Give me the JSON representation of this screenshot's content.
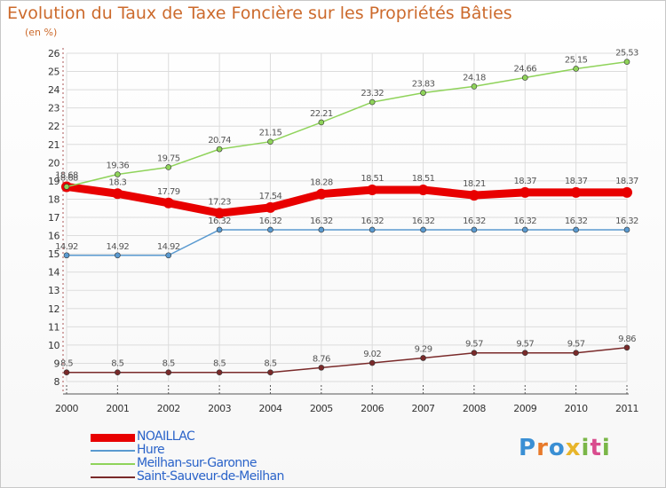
{
  "title": "Evolution du Taux de Taxe Foncière sur les Propriétés Bâties",
  "subtitle": "(en %)",
  "logo": {
    "text": [
      "P",
      "r",
      "o",
      "x",
      "i",
      "t",
      "i"
    ],
    "colors": [
      "#3a8fd4",
      "#e87a2b",
      "#3a8fd4",
      "#e8b52b",
      "#7ab648",
      "#d94c8e",
      "#7ab648"
    ]
  },
  "chart_data": {
    "type": "line",
    "title": "Evolution du Taux de Taxe Foncière sur les Propriétés Bâties",
    "ylabel": "(en %)",
    "xlabel": "",
    "ylim": [
      8,
      26
    ],
    "yticks": [
      "8",
      "9",
      "10",
      "11",
      "12",
      "13",
      "14",
      "15",
      "16",
      "17",
      "18",
      "19",
      "20",
      "21",
      "22",
      "23",
      "24",
      "25",
      "26"
    ],
    "categories": [
      "2000",
      "2001",
      "2002",
      "2003",
      "2004",
      "2005",
      "2006",
      "2007",
      "2008",
      "2009",
      "2010",
      "2011"
    ],
    "series": [
      {
        "name": "NOAILLAC",
        "color": "#e80000",
        "thick": true,
        "values": [
          18.68,
          18.3,
          17.79,
          17.23,
          17.54,
          18.28,
          18.51,
          18.51,
          18.21,
          18.37,
          18.37,
          18.37
        ],
        "labels": [
          "18.68",
          "18.3",
          "17.79",
          "17.23",
          "17.54",
          "18.28",
          "18.51",
          "18.51",
          "18.21",
          "18.37",
          "18.37",
          "18.37"
        ]
      },
      {
        "name": "Hure",
        "color": "#5a9ad0",
        "thick": false,
        "values": [
          14.92,
          14.92,
          14.92,
          16.32,
          16.32,
          16.32,
          16.32,
          16.32,
          16.32,
          16.32,
          16.32,
          16.32
        ],
        "labels": [
          "14.92",
          "14.92",
          "14.92",
          "16.32",
          "16.32",
          "16.32",
          "16.32",
          "16.32",
          "16.32",
          "16.32",
          "16.32",
          "16.32"
        ]
      },
      {
        "name": "Meilhan-sur-Garonne",
        "color": "#8fd35a",
        "thick": false,
        "values": [
          18.68,
          19.36,
          19.75,
          20.74,
          21.15,
          22.21,
          23.32,
          23.83,
          24.18,
          24.66,
          25.15,
          25.53
        ],
        "labels": [
          "18.68",
          "19.36",
          "19.75",
          "20.74",
          "21.15",
          "22.21",
          "23.32",
          "23.83",
          "24.18",
          "24.66",
          "25.15",
          "25.53"
        ]
      },
      {
        "name": "Saint-Sauveur-de-Meilhan",
        "color": "#7a2a2a",
        "thick": false,
        "values": [
          8.5,
          8.5,
          8.5,
          8.5,
          8.5,
          8.76,
          9.02,
          9.29,
          9.57,
          9.57,
          9.57,
          9.86
        ],
        "labels": [
          "8.5",
          "8.5",
          "8.5",
          "8.5",
          "8.5",
          "8.76",
          "9.02",
          "9.29",
          "9.57",
          "9.57",
          "9.57",
          "9.86"
        ]
      }
    ]
  }
}
